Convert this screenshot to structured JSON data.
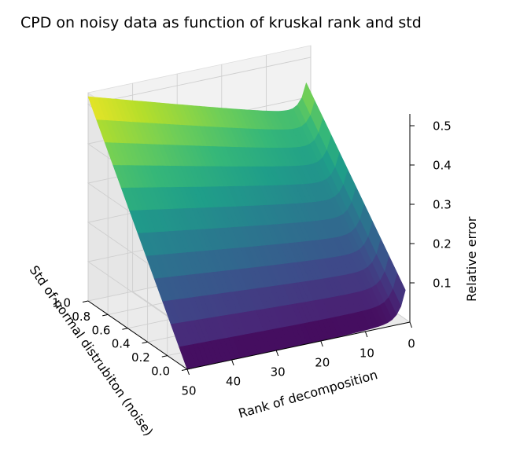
{
  "chart_data": {
    "type": "surface",
    "title": "CPD on noisy data as function of kruskal rank and std",
    "xlabel": "Rank of decomposition",
    "ylabel": "Std of normal distrubiton (noise)",
    "zlabel": "Relative error",
    "x_ticks": [
      "0",
      "10",
      "20",
      "30",
      "40",
      "50"
    ],
    "y_ticks": [
      "0.0",
      "0.2",
      "0.4",
      "0.6",
      "0.8",
      "1.0"
    ],
    "z_ticks": [
      "0.1",
      "0.2",
      "0.3",
      "0.4",
      "0.5"
    ],
    "xlim": [
      0,
      50
    ],
    "ylim": [
      0,
      1.0
    ],
    "zlim": [
      0.0,
      0.53
    ],
    "colormap": "viridis",
    "rank_range": [
      1,
      50
    ],
    "std_range": [
      0.0,
      1.0
    ],
    "surface_samples": [
      {
        "rank": 1,
        "std": 0.0,
        "error": 0.15
      },
      {
        "rank": 1,
        "std": 1.0,
        "error": 0.23
      },
      {
        "rank": 10,
        "std": 1.0,
        "error": 0.37
      },
      {
        "rank": 20,
        "std": 1.0,
        "error": 0.4
      },
      {
        "rank": 30,
        "std": 1.0,
        "error": 0.43
      },
      {
        "rank": 40,
        "std": 1.0,
        "error": 0.47
      },
      {
        "rank": 50,
        "std": 1.0,
        "error": 0.52
      },
      {
        "rank": 50,
        "std": 0.0,
        "error": 0.0
      },
      {
        "rank": 25,
        "std": 0.0,
        "error": 0.0
      },
      {
        "rank": 10,
        "std": 0.0,
        "error": 0.01
      }
    ]
  }
}
